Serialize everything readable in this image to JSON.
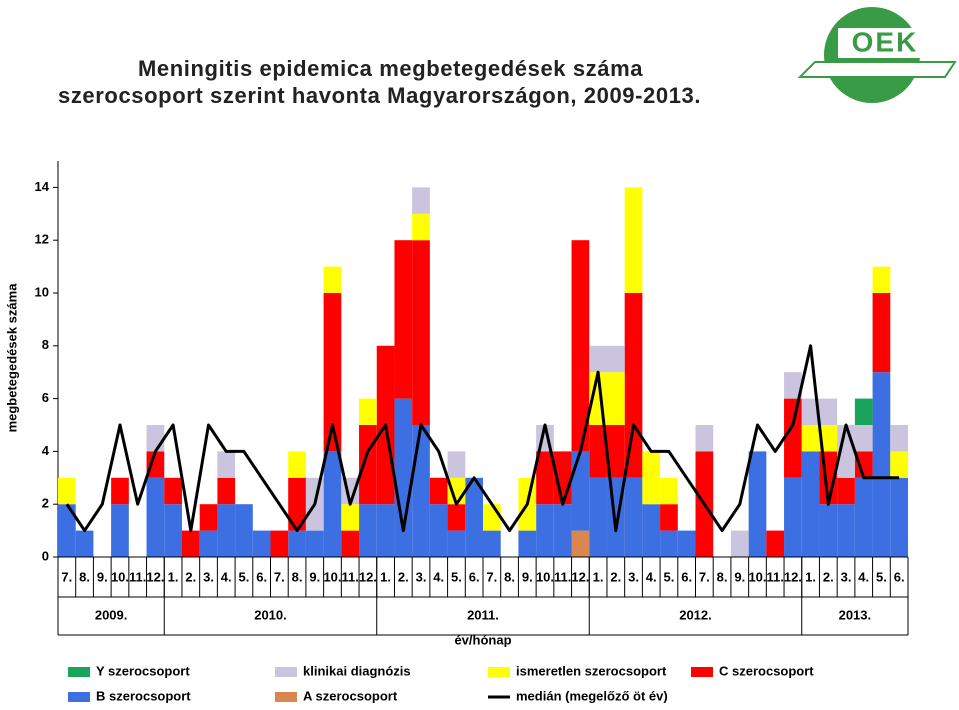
{
  "logo": "OEK",
  "chart_data": {
    "type": "bar",
    "title": "Meningitis epidemica megbetegedések száma",
    "subtitle": "szerocsoport szerint havonta Magyarországon, 2009-2013.",
    "y_label": "megbetegedések száma",
    "x_label": "év/hónap",
    "years": [
      {
        "label": "2009.",
        "months": [
          "7.",
          "8.",
          "9.",
          "10.",
          "11.",
          "12."
        ]
      },
      {
        "label": "2010.",
        "months": [
          "1.",
          "2.",
          "3.",
          "4.",
          "5.",
          "6.",
          "7.",
          "8.",
          "9.",
          "10.",
          "11.",
          "12."
        ]
      },
      {
        "label": "2011.",
        "months": [
          "1.",
          "2.",
          "3.",
          "4.",
          "5.",
          "6.",
          "7.",
          "8.",
          "9.",
          "10.",
          "11.",
          "12."
        ]
      },
      {
        "label": "2012.",
        "months": [
          "1.",
          "2.",
          "3.",
          "4.",
          "5.",
          "6.",
          "7.",
          "8.",
          "9.",
          "10.",
          "11.",
          "12."
        ]
      },
      {
        "label": "2013.",
        "months": [
          "1.",
          "2.",
          "3.",
          "4.",
          "5.",
          "6."
        ]
      }
    ],
    "ylim": [
      0,
      15
    ],
    "yticks": [
      0,
      2,
      4,
      6,
      8,
      10,
      12,
      14
    ],
    "stacked": true,
    "series": [
      {
        "name": "A szerocsoport",
        "color": "#d9874f",
        "values": [
          0,
          0,
          0,
          0,
          0,
          0,
          0,
          0,
          0,
          0,
          0,
          0,
          0,
          0,
          0,
          0,
          0,
          0,
          0,
          0,
          0,
          0,
          0,
          0,
          0,
          0,
          0,
          0,
          0,
          1,
          0,
          0,
          0,
          0,
          0,
          0,
          0,
          0,
          0,
          0,
          0,
          0,
          0,
          0,
          0,
          0,
          0,
          0
        ]
      },
      {
        "name": "B szerocsoport",
        "color": "#3c6fe2",
        "values": [
          2,
          1,
          0,
          2,
          0,
          3,
          2,
          0,
          1,
          2,
          2,
          1,
          0,
          1,
          1,
          4,
          0,
          2,
          2,
          6,
          5,
          2,
          1,
          3,
          1,
          0,
          1,
          2,
          2,
          3,
          3,
          3,
          3,
          2,
          1,
          1,
          0,
          0,
          0,
          4,
          0,
          3,
          4,
          2,
          2,
          3,
          7,
          3
        ]
      },
      {
        "name": "C szerocsoport",
        "color": "#ff0000",
        "values": [
          0,
          0,
          0,
          1,
          0,
          1,
          1,
          1,
          1,
          1,
          0,
          0,
          1,
          2,
          0,
          6,
          1,
          3,
          6,
          6,
          7,
          1,
          1,
          0,
          0,
          0,
          0,
          2,
          2,
          8,
          2,
          2,
          7,
          0,
          1,
          0,
          4,
          0,
          0,
          0,
          1,
          3,
          0,
          2,
          1,
          1,
          3,
          0
        ]
      },
      {
        "name": "ismeretlen szerocsoport",
        "color": "#ffff00",
        "values": [
          1,
          0,
          0,
          0,
          0,
          0,
          0,
          0,
          0,
          0,
          0,
          0,
          0,
          1,
          0,
          1,
          1,
          1,
          0,
          0,
          1,
          0,
          1,
          0,
          1,
          0,
          2,
          0,
          0,
          0,
          2,
          2,
          4,
          2,
          1,
          0,
          0,
          0,
          0,
          0,
          0,
          0,
          1,
          1,
          0,
          0,
          1,
          1
        ]
      },
      {
        "name": "klinikai diagnózis",
        "color": "#cbc4de",
        "values": [
          0,
          0,
          0,
          0,
          0,
          1,
          0,
          0,
          0,
          1,
          0,
          0,
          0,
          0,
          2,
          0,
          1,
          0,
          0,
          0,
          1,
          0,
          1,
          0,
          0,
          0,
          0,
          1,
          0,
          0,
          1,
          1,
          0,
          0,
          0,
          0,
          1,
          0,
          1,
          0,
          0,
          1,
          1,
          1,
          2,
          1,
          0,
          1
        ]
      },
      {
        "name": "Y szerocsoport",
        "color": "#1aa35a",
        "values": [
          0,
          0,
          0,
          0,
          0,
          0,
          0,
          0,
          0,
          0,
          0,
          0,
          0,
          0,
          0,
          0,
          0,
          0,
          0,
          0,
          0,
          0,
          0,
          0,
          0,
          0,
          0,
          0,
          0,
          0,
          0,
          0,
          0,
          0,
          0,
          0,
          0,
          0,
          0,
          0,
          0,
          0,
          0,
          0,
          0,
          1,
          0,
          0
        ]
      },
      {
        "name": "medián (megelőző öt év)",
        "color": "#000000",
        "type": "line",
        "values": [
          2,
          1,
          2,
          5,
          2,
          4,
          5,
          1,
          5,
          4,
          4,
          3,
          2,
          1,
          2,
          5,
          2,
          4,
          5,
          1,
          5,
          4,
          2,
          3,
          2,
          1,
          2,
          5,
          2,
          4,
          7,
          1,
          5,
          4,
          4,
          3,
          2,
          1,
          2,
          5,
          4,
          5,
          8,
          2,
          5,
          3,
          3,
          3
        ]
      }
    ]
  }
}
